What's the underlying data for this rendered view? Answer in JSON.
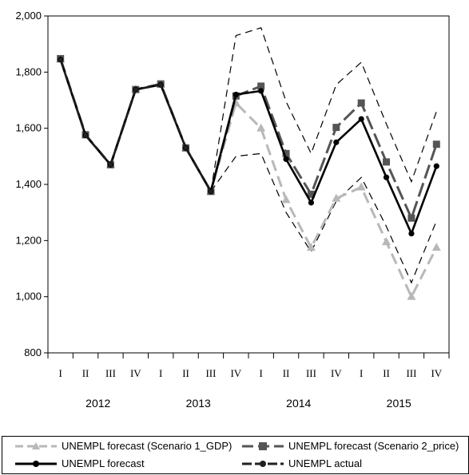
{
  "chart_data": {
    "type": "line",
    "x": [
      "2012 I",
      "2012 II",
      "2012 III",
      "2012 IV",
      "2013 I",
      "2013 II",
      "2013 III",
      "2013 IV",
      "2014 I",
      "2014 II",
      "2014 III",
      "2014 IV",
      "2015 I",
      "2015 II",
      "2015 III",
      "2015 IV"
    ],
    "quarter_labels": [
      "I",
      "II",
      "III",
      "IV",
      "I",
      "II",
      "III",
      "IV",
      "I",
      "II",
      "III",
      "IV",
      "I",
      "II",
      "III",
      "IV"
    ],
    "year_labels": [
      "2012",
      "2013",
      "2014",
      "2015"
    ],
    "ylim": [
      800,
      2000
    ],
    "yticks": [
      800,
      1000,
      1200,
      1400,
      1600,
      1800,
      2000
    ],
    "ytick_labels": [
      "800",
      "1,000",
      "1,200",
      "1,400",
      "1,600",
      "1,800",
      "2,000"
    ],
    "title": "",
    "xlabel": "",
    "ylabel": "",
    "series": [
      {
        "name": "UNEMPL forecast (Scenario 1_GDP)",
        "key": "s1",
        "color": "#b8b8b8",
        "values": [
          1845,
          1575,
          1470,
          1738,
          1755,
          1530,
          1375,
          1690,
          1600,
          1345,
          1175,
          1350,
          1390,
          1195,
          1000,
          1175
        ]
      },
      {
        "name": "UNEMPL forecast (Scenario 2_price)",
        "key": "s2",
        "color": "#555555",
        "values": [
          1848,
          1577,
          1470,
          1738,
          1758,
          1530,
          1375,
          1715,
          1750,
          1510,
          1365,
          1603,
          1690,
          1480,
          1280,
          1543
        ]
      },
      {
        "name": "UNEMPL forecast",
        "key": "fc",
        "color": "#000000",
        "values": [
          1845,
          1575,
          1470,
          1738,
          1755,
          1530,
          1375,
          1720,
          1733,
          1490,
          1335,
          1550,
          1633,
          1425,
          1225,
          1465
        ]
      },
      {
        "name": "UNEMPL actual",
        "key": "act",
        "color": "#222222",
        "values": [
          1845,
          1575,
          1470,
          1738,
          1755,
          1530,
          1375,
          null,
          null,
          null,
          null,
          null,
          null,
          null,
          null,
          null
        ]
      },
      {
        "name": "",
        "key": "upper",
        "color": "#000000",
        "values": [
          null,
          null,
          null,
          null,
          null,
          null,
          1375,
          1930,
          1958,
          1695,
          1510,
          1755,
          1835,
          1615,
          1410,
          1660
        ]
      },
      {
        "name": "",
        "key": "lower",
        "color": "#000000",
        "values": [
          null,
          null,
          null,
          null,
          null,
          null,
          1375,
          1500,
          1510,
          1300,
          1160,
          1340,
          1425,
          1250,
          1050,
          1270
        ]
      }
    ],
    "grid": false,
    "legend_position": "bottom"
  },
  "legend": {
    "s1": "UNEMPL forecast (Scenario 1_GDP)",
    "s2": "UNEMPL forecast (Scenario 2_price)",
    "fc": "UNEMPL forecast",
    "act": "UNEMPL actual"
  }
}
